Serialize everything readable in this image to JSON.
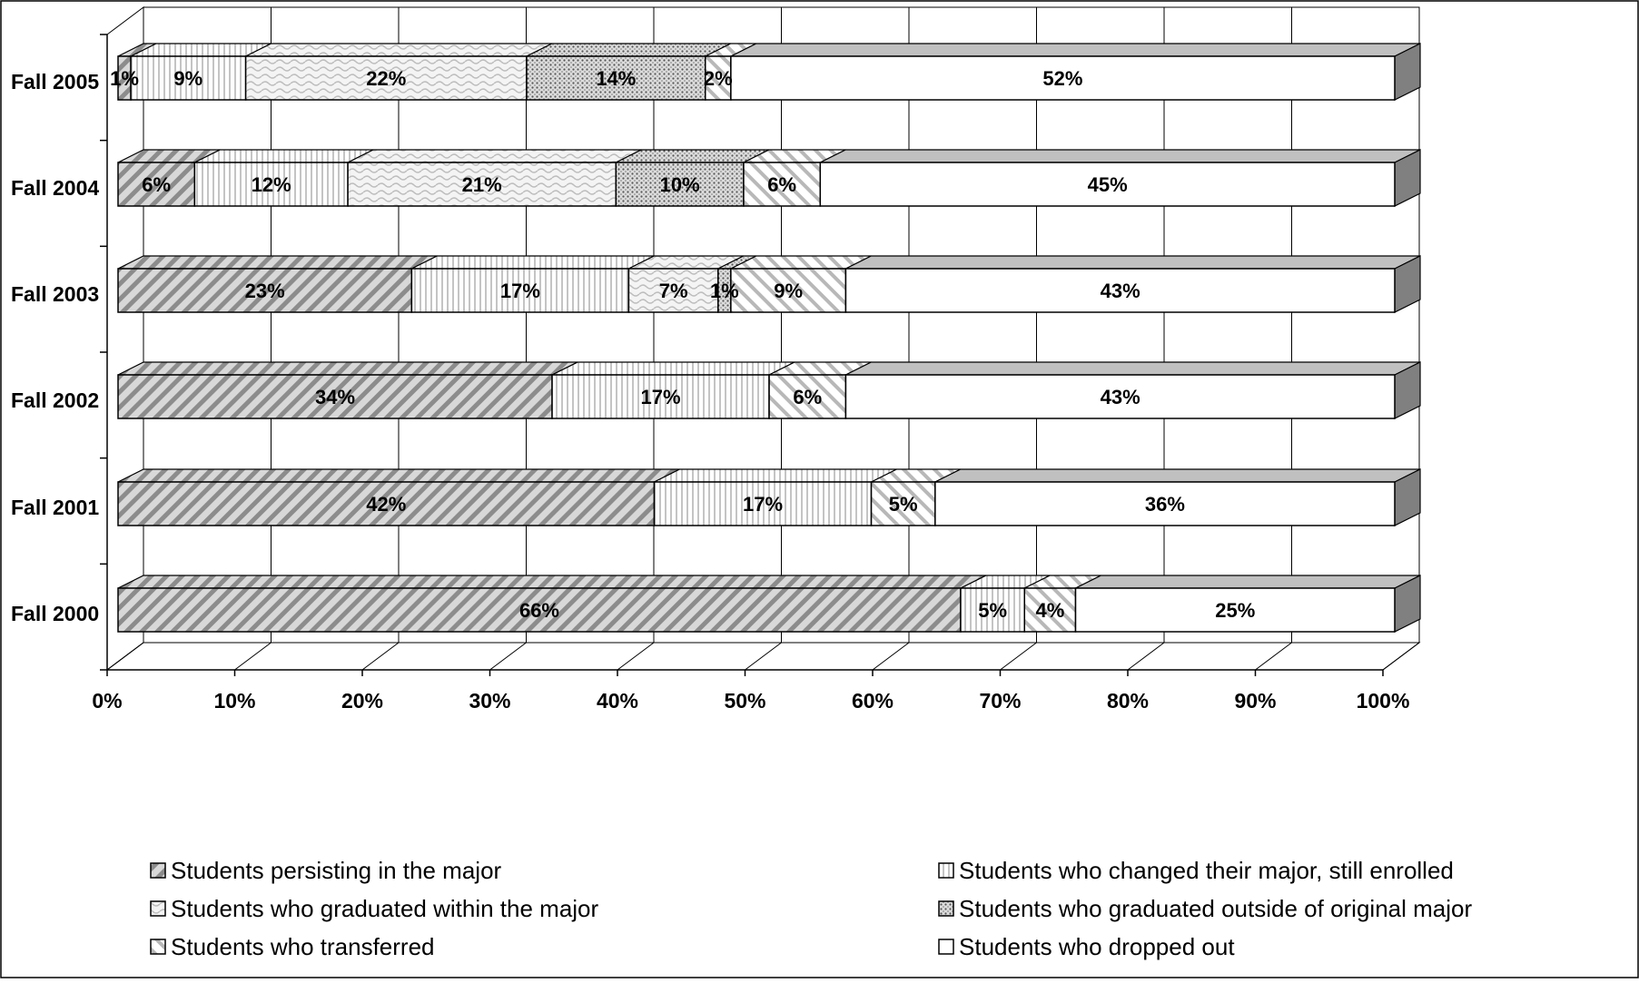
{
  "chart_data": {
    "type": "bar",
    "orientation": "horizontal",
    "stacked": true,
    "percent_stacked": true,
    "three_d": true,
    "title": "",
    "xlabel": "",
    "ylabel": "",
    "xlim": [
      0,
      100
    ],
    "x_ticks": [
      "0%",
      "10%",
      "20%",
      "30%",
      "40%",
      "50%",
      "60%",
      "70%",
      "80%",
      "90%",
      "100%"
    ],
    "grid": true,
    "legend_position": "bottom",
    "categories": [
      "Fall 2005",
      "Fall 2004",
      "Fall 2003",
      "Fall 2002",
      "Fall 2001",
      "Fall 2000"
    ],
    "series": [
      {
        "name": "Students persisting in the major",
        "pattern": "diagonal-stripes",
        "values": [
          1,
          6,
          23,
          34,
          42,
          66
        ],
        "labels": [
          "1%",
          "6%",
          "23%",
          "34%",
          "42%",
          "66%"
        ]
      },
      {
        "name": "Students who changed their major, still enrolled",
        "pattern": "vertical-lines",
        "values": [
          9,
          12,
          17,
          17,
          17,
          5
        ],
        "labels": [
          "9%",
          "12%",
          "17%",
          "17%",
          "17%",
          "5%"
        ]
      },
      {
        "name": "Students who graduated within the major",
        "pattern": "wave",
        "values": [
          22,
          21,
          7,
          0,
          0,
          0
        ],
        "labels": [
          "22%",
          "21%",
          "7%",
          "",
          "",
          ""
        ]
      },
      {
        "name": "Students who graduated outside of original major",
        "pattern": "dots",
        "values": [
          14,
          10,
          1,
          0,
          0,
          0
        ],
        "labels": [
          "14%",
          "10%",
          "1%",
          "",
          "",
          ""
        ]
      },
      {
        "name": "Students who transferred",
        "pattern": "diagonal-thin",
        "values": [
          2,
          6,
          9,
          6,
          5,
          4
        ],
        "labels": [
          "2%",
          "6%",
          "9%",
          "6%",
          "5%",
          "4%"
        ]
      },
      {
        "name": "Students who dropped out",
        "pattern": "solid-white",
        "values": [
          52,
          45,
          43,
          43,
          36,
          25
        ],
        "labels": [
          "52%",
          "45%",
          "43%",
          "43%",
          "36%",
          "25%"
        ]
      }
    ],
    "colors": {
      "axis": "#000000",
      "grid": "#000000",
      "bar_top": "#c0c0c0",
      "bar_side": "#808080"
    }
  }
}
